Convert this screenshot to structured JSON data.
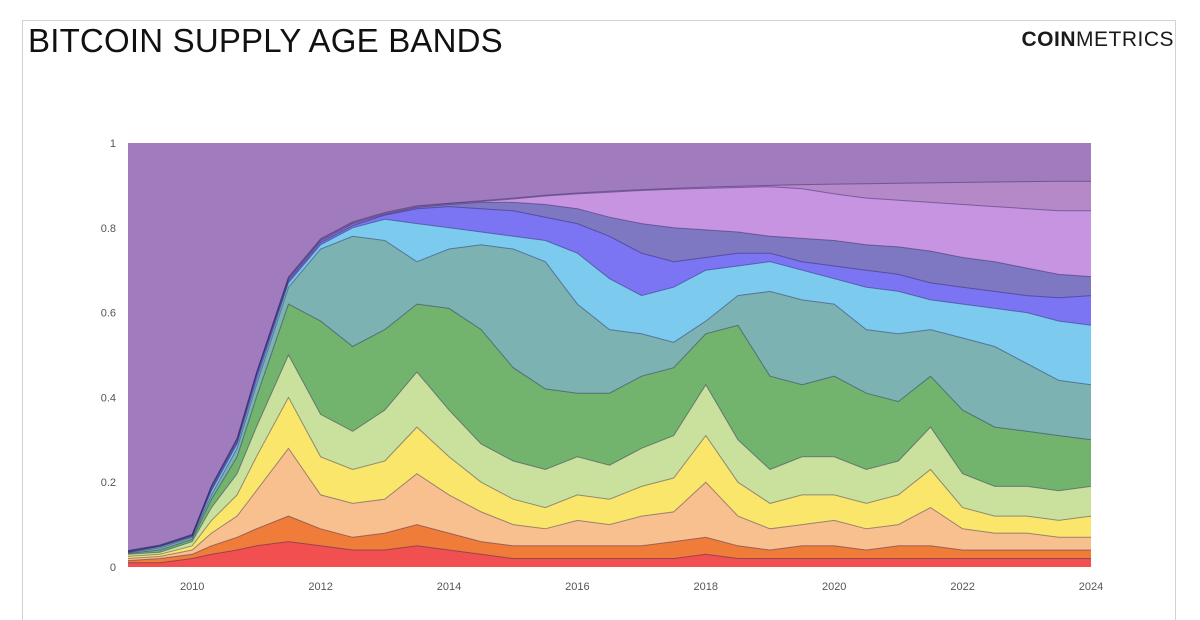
{
  "header": {
    "title": "BITCOIN SUPPLY AGE BANDS",
    "brand_bold": "COIN",
    "brand_light": "METRICS"
  },
  "chart_data": {
    "type": "area",
    "title": "BITCOIN SUPPLY AGE BANDS",
    "xlabel": "",
    "ylabel": "",
    "xlim": [
      2009.0,
      2024.0
    ],
    "ylim": [
      0,
      1
    ],
    "x_ticks": [
      "2010",
      "2012",
      "2014",
      "2016",
      "2018",
      "2020",
      "2022",
      "2024"
    ],
    "y_ticks": [
      "0",
      "0.2",
      "0.4",
      "0.6",
      "0.8",
      "1"
    ],
    "stacking": "cumulative",
    "x": [
      2009.0,
      2009.5,
      2010.0,
      2010.3,
      2010.7,
      2011.0,
      2011.5,
      2012.0,
      2012.5,
      2013.0,
      2013.5,
      2014.0,
      2014.5,
      2015.0,
      2015.5,
      2016.0,
      2016.5,
      2017.0,
      2017.5,
      2018.0,
      2018.5,
      2019.0,
      2019.5,
      2020.0,
      2020.5,
      2021.0,
      2021.5,
      2022.0,
      2022.5,
      2023.0,
      2023.5,
      2024.0
    ],
    "series": [
      {
        "color": "#f25050",
        "values": [
          0.01,
          0.01,
          0.02,
          0.03,
          0.04,
          0.05,
          0.06,
          0.05,
          0.04,
          0.04,
          0.05,
          0.04,
          0.03,
          0.02,
          0.02,
          0.02,
          0.02,
          0.02,
          0.02,
          0.03,
          0.02,
          0.02,
          0.02,
          0.02,
          0.02,
          0.02,
          0.02,
          0.02,
          0.02,
          0.02,
          0.02,
          0.02
        ]
      },
      {
        "color": "#f07c3a",
        "values": [
          0.015,
          0.02,
          0.03,
          0.05,
          0.07,
          0.09,
          0.12,
          0.09,
          0.07,
          0.08,
          0.1,
          0.08,
          0.06,
          0.05,
          0.05,
          0.05,
          0.05,
          0.05,
          0.06,
          0.07,
          0.05,
          0.04,
          0.05,
          0.05,
          0.04,
          0.05,
          0.05,
          0.04,
          0.04,
          0.04,
          0.04,
          0.04
        ]
      },
      {
        "color": "#f9c08f",
        "values": [
          0.02,
          0.025,
          0.04,
          0.08,
          0.12,
          0.18,
          0.28,
          0.17,
          0.15,
          0.16,
          0.22,
          0.17,
          0.13,
          0.1,
          0.09,
          0.11,
          0.1,
          0.12,
          0.13,
          0.2,
          0.12,
          0.09,
          0.1,
          0.11,
          0.09,
          0.1,
          0.14,
          0.09,
          0.08,
          0.08,
          0.07,
          0.07
        ]
      },
      {
        "color": "#fbe66c",
        "values": [
          0.025,
          0.03,
          0.05,
          0.11,
          0.17,
          0.26,
          0.4,
          0.26,
          0.23,
          0.25,
          0.33,
          0.26,
          0.2,
          0.16,
          0.14,
          0.17,
          0.16,
          0.19,
          0.21,
          0.31,
          0.2,
          0.15,
          0.17,
          0.17,
          0.15,
          0.17,
          0.23,
          0.14,
          0.12,
          0.12,
          0.11,
          0.12
        ]
      },
      {
        "color": "#c9e19d",
        "values": [
          0.03,
          0.035,
          0.06,
          0.14,
          0.22,
          0.33,
          0.5,
          0.36,
          0.32,
          0.37,
          0.46,
          0.37,
          0.29,
          0.25,
          0.23,
          0.26,
          0.24,
          0.28,
          0.31,
          0.43,
          0.3,
          0.23,
          0.26,
          0.26,
          0.23,
          0.25,
          0.33,
          0.22,
          0.19,
          0.19,
          0.18,
          0.19
        ]
      },
      {
        "color": "#72b36e",
        "values": [
          0.032,
          0.04,
          0.065,
          0.16,
          0.26,
          0.4,
          0.62,
          0.58,
          0.52,
          0.56,
          0.62,
          0.61,
          0.56,
          0.47,
          0.42,
          0.41,
          0.41,
          0.45,
          0.47,
          0.55,
          0.57,
          0.45,
          0.43,
          0.45,
          0.41,
          0.39,
          0.45,
          0.37,
          0.33,
          0.32,
          0.31,
          0.3
        ]
      },
      {
        "color": "#7cb2b2",
        "values": [
          0.034,
          0.045,
          0.07,
          0.17,
          0.28,
          0.43,
          0.66,
          0.75,
          0.78,
          0.77,
          0.72,
          0.75,
          0.76,
          0.75,
          0.72,
          0.62,
          0.56,
          0.55,
          0.53,
          0.58,
          0.64,
          0.65,
          0.63,
          0.62,
          0.56,
          0.55,
          0.56,
          0.54,
          0.52,
          0.48,
          0.44,
          0.43
        ]
      },
      {
        "color": "#7ccbee",
        "values": [
          0.035,
          0.048,
          0.072,
          0.18,
          0.29,
          0.44,
          0.67,
          0.76,
          0.8,
          0.82,
          0.81,
          0.8,
          0.79,
          0.78,
          0.77,
          0.74,
          0.68,
          0.64,
          0.66,
          0.7,
          0.71,
          0.72,
          0.7,
          0.68,
          0.66,
          0.65,
          0.63,
          0.62,
          0.61,
          0.6,
          0.58,
          0.57
        ]
      },
      {
        "color": "#7b74f3",
        "values": [
          0.036,
          0.049,
          0.074,
          0.185,
          0.295,
          0.45,
          0.675,
          0.765,
          0.805,
          0.83,
          0.845,
          0.85,
          0.845,
          0.84,
          0.825,
          0.81,
          0.78,
          0.74,
          0.72,
          0.73,
          0.74,
          0.74,
          0.72,
          0.71,
          0.7,
          0.69,
          0.67,
          0.66,
          0.65,
          0.64,
          0.635,
          0.64
        ]
      },
      {
        "color": "#7e77c2",
        "values": [
          0.037,
          0.05,
          0.075,
          0.19,
          0.3,
          0.455,
          0.68,
          0.77,
          0.81,
          0.832,
          0.848,
          0.855,
          0.86,
          0.86,
          0.855,
          0.845,
          0.825,
          0.81,
          0.8,
          0.795,
          0.79,
          0.78,
          0.775,
          0.77,
          0.76,
          0.755,
          0.745,
          0.73,
          0.72,
          0.705,
          0.69,
          0.685
        ]
      },
      {
        "color": "#c694e0",
        "values": [
          0.038,
          0.051,
          0.076,
          0.19,
          0.302,
          0.456,
          0.682,
          0.772,
          0.812,
          0.834,
          0.85,
          0.857,
          0.862,
          0.868,
          0.875,
          0.88,
          0.884,
          0.888,
          0.891,
          0.893,
          0.895,
          0.897,
          0.892,
          0.88,
          0.87,
          0.865,
          0.86,
          0.855,
          0.85,
          0.845,
          0.84,
          0.84
        ]
      },
      {
        "color": "#b588c7",
        "values": [
          0.039,
          0.052,
          0.077,
          0.192,
          0.304,
          0.458,
          0.684,
          0.774,
          0.814,
          0.836,
          0.852,
          0.858,
          0.864,
          0.87,
          0.877,
          0.882,
          0.886,
          0.89,
          0.893,
          0.896,
          0.898,
          0.9,
          0.902,
          0.903,
          0.904,
          0.905,
          0.906,
          0.907,
          0.908,
          0.909,
          0.91,
          0.91
        ]
      },
      {
        "color": "#a07cbf",
        "values": [
          1,
          1,
          1,
          1,
          1,
          1,
          1,
          1,
          1,
          1,
          1,
          1,
          1,
          1,
          1,
          1,
          1,
          1,
          1,
          1,
          1,
          1,
          1,
          1,
          1,
          1,
          1,
          1,
          1,
          1,
          1,
          1
        ]
      }
    ]
  }
}
